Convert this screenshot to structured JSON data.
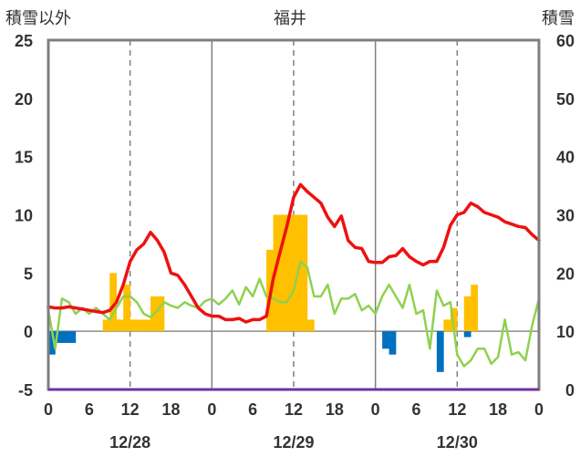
{
  "chart_data": {
    "type": "bar+line",
    "title": "福井",
    "y_left_label": "積雪以外",
    "y_right_label": "積雪",
    "ylim_left": [
      -5,
      25
    ],
    "ylim_right": [
      0,
      60
    ],
    "yticks_left": [
      "-5",
      "0",
      "5",
      "10",
      "15",
      "20",
      "25"
    ],
    "yticks_right": [
      "0",
      "10",
      "20",
      "30",
      "40",
      "50",
      "60"
    ],
    "xlim_hours": [
      0,
      72
    ],
    "xtick_labels": [
      "0",
      "6",
      "12",
      "18",
      "0",
      "6",
      "12",
      "18",
      "0",
      "6",
      "12",
      "18",
      "0"
    ],
    "date_labels": [
      "12/28",
      "12/29",
      "12/30"
    ],
    "grid": "vertical dashed at 12:00, solid at day boundaries",
    "colors": {
      "red_line": "#ee1111",
      "green_line": "#8fd14f",
      "precip_bar": "#ffc000",
      "negative_bar": "#0070c0",
      "baseline": "#7030a0",
      "frame": "#7f7f7f"
    },
    "precip_bars": [
      [
        8,
        1
      ],
      [
        9,
        5
      ],
      [
        10,
        1
      ],
      [
        11,
        4
      ],
      [
        12,
        1
      ],
      [
        13,
        1
      ],
      [
        14,
        1
      ],
      [
        15,
        3
      ],
      [
        16,
        3
      ],
      [
        32,
        7
      ],
      [
        33,
        10
      ],
      [
        34,
        10
      ],
      [
        35,
        10
      ],
      [
        36,
        10
      ],
      [
        37,
        10
      ],
      [
        38,
        1
      ],
      [
        58,
        1
      ],
      [
        59,
        2
      ],
      [
        61,
        3
      ],
      [
        62,
        4
      ]
    ],
    "negative_bars": [
      [
        0,
        -2
      ],
      [
        1,
        -1
      ],
      [
        2,
        -1
      ],
      [
        3,
        -1
      ],
      [
        49,
        -1.5
      ],
      [
        50,
        -2
      ],
      [
        57,
        -3.5
      ],
      [
        61,
        -0.5
      ]
    ],
    "red_series": [
      [
        0,
        2.1
      ],
      [
        1,
        2.0
      ],
      [
        2,
        2.0
      ],
      [
        3,
        2.1
      ],
      [
        4,
        2.0
      ],
      [
        5,
        1.9
      ],
      [
        6,
        1.8
      ],
      [
        7,
        1.7
      ],
      [
        8,
        1.6
      ],
      [
        9,
        1.8
      ],
      [
        10,
        2.5
      ],
      [
        11,
        4.0
      ],
      [
        12,
        6.0
      ],
      [
        13,
        7.0
      ],
      [
        14,
        7.5
      ],
      [
        15,
        8.5
      ],
      [
        16,
        7.8
      ],
      [
        17,
        6.8
      ],
      [
        18,
        5.0
      ],
      [
        19,
        4.8
      ],
      [
        20,
        4.0
      ],
      [
        21,
        3.0
      ],
      [
        22,
        2.0
      ],
      [
        23,
        1.5
      ],
      [
        24,
        1.3
      ],
      [
        25,
        1.3
      ],
      [
        26,
        1.0
      ],
      [
        27,
        1.0
      ],
      [
        28,
        1.1
      ],
      [
        29,
        0.8
      ],
      [
        30,
        1.0
      ],
      [
        31,
        1.0
      ],
      [
        32,
        1.3
      ],
      [
        33,
        4.5
      ],
      [
        34,
        6.8
      ],
      [
        35,
        9.0
      ],
      [
        36,
        11.5
      ],
      [
        37,
        12.6
      ],
      [
        38,
        12.0
      ],
      [
        39,
        11.5
      ],
      [
        40,
        11.0
      ],
      [
        41,
        9.8
      ],
      [
        42,
        9.0
      ],
      [
        43,
        9.9
      ],
      [
        44,
        7.8
      ],
      [
        45,
        7.2
      ],
      [
        46,
        7.1
      ],
      [
        47,
        6.0
      ],
      [
        48,
        5.9
      ],
      [
        49,
        5.9
      ],
      [
        50,
        6.4
      ],
      [
        51,
        6.5
      ],
      [
        52,
        7.1
      ],
      [
        53,
        6.4
      ],
      [
        54,
        6.0
      ],
      [
        55,
        5.7
      ],
      [
        56,
        6.0
      ],
      [
        57,
        6.0
      ],
      [
        58,
        7.2
      ],
      [
        59,
        9.1
      ],
      [
        60,
        10.0
      ],
      [
        61,
        10.2
      ],
      [
        62,
        11.0
      ],
      [
        63,
        10.7
      ],
      [
        64,
        10.2
      ],
      [
        65,
        10.0
      ],
      [
        66,
        9.8
      ],
      [
        67,
        9.4
      ],
      [
        68,
        9.2
      ],
      [
        69,
        9.0
      ],
      [
        70,
        8.9
      ],
      [
        71,
        8.3
      ],
      [
        72,
        7.8
      ]
    ],
    "green_series": [
      [
        0,
        1.8
      ],
      [
        1,
        -1.5
      ],
      [
        2,
        2.8
      ],
      [
        3,
        2.5
      ],
      [
        4,
        1.5
      ],
      [
        5,
        2.0
      ],
      [
        6,
        1.5
      ],
      [
        7,
        2.0
      ],
      [
        8,
        1.5
      ],
      [
        9,
        1.0
      ],
      [
        10,
        2.0
      ],
      [
        11,
        3.0
      ],
      [
        12,
        3.0
      ],
      [
        13,
        2.5
      ],
      [
        14,
        1.5
      ],
      [
        15,
        1.2
      ],
      [
        16,
        1.8
      ],
      [
        17,
        2.5
      ],
      [
        18,
        2.2
      ],
      [
        19,
        2.0
      ],
      [
        20,
        2.5
      ],
      [
        21,
        2.2
      ],
      [
        22,
        2.0
      ],
      [
        23,
        2.6
      ],
      [
        24,
        2.8
      ],
      [
        25,
        2.3
      ],
      [
        26,
        2.8
      ],
      [
        27,
        3.5
      ],
      [
        28,
        2.3
      ],
      [
        29,
        3.8
      ],
      [
        30,
        3.0
      ],
      [
        31,
        4.5
      ],
      [
        32,
        3.0
      ],
      [
        33,
        2.8
      ],
      [
        34,
        2.5
      ],
      [
        35,
        2.5
      ],
      [
        36,
        3.5
      ],
      [
        37,
        6.0
      ],
      [
        38,
        5.5
      ],
      [
        39,
        3.0
      ],
      [
        40,
        3.0
      ],
      [
        41,
        4.0
      ],
      [
        42,
        1.5
      ],
      [
        43,
        2.8
      ],
      [
        44,
        2.8
      ],
      [
        45,
        3.2
      ],
      [
        46,
        1.8
      ],
      [
        47,
        2.2
      ],
      [
        48,
        1.5
      ],
      [
        49,
        3.0
      ],
      [
        50,
        4.0
      ],
      [
        51,
        3.0
      ],
      [
        52,
        2.0
      ],
      [
        53,
        4.0
      ],
      [
        54,
        1.5
      ],
      [
        55,
        1.8
      ],
      [
        56,
        -1.5
      ],
      [
        57,
        3.5
      ],
      [
        58,
        2.2
      ],
      [
        59,
        2.5
      ],
      [
        60,
        -2.0
      ],
      [
        61,
        -3.0
      ],
      [
        62,
        -2.5
      ],
      [
        63,
        -1.5
      ],
      [
        64,
        -1.5
      ],
      [
        65,
        -2.8
      ],
      [
        66,
        -2.2
      ],
      [
        67,
        1.0
      ],
      [
        68,
        -2.0
      ],
      [
        69,
        -1.8
      ],
      [
        70,
        -2.5
      ],
      [
        71,
        0.5
      ],
      [
        72,
        2.8
      ]
    ]
  }
}
